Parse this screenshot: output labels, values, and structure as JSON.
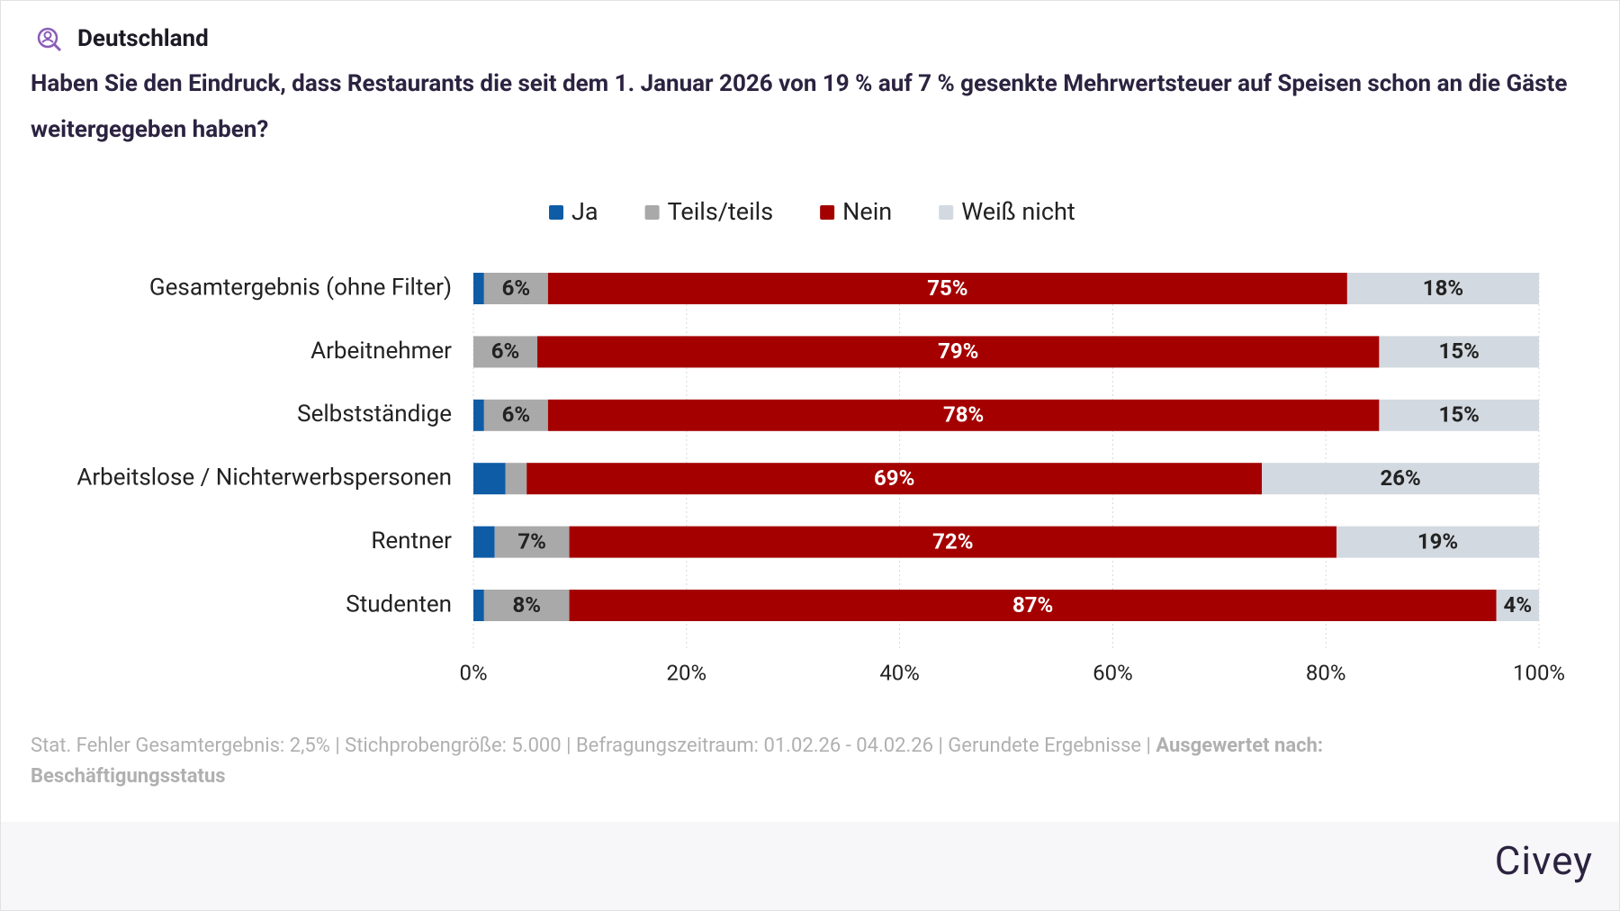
{
  "region": "Deutschland",
  "brand": "Civey",
  "chart_data": {
    "type": "stacked-barh",
    "title": "Haben Sie den Eindruck, dass Restaurants die seit dem 1. Januar 2026 von 19 % auf 7 % gesenkte Mehrwertsteuer auf Speisen schon an die Gäste weitergegeben haben?",
    "categories": [
      "Gesamtergebnis (ohne Filter)",
      "Arbeitnehmer",
      "Selbstständige",
      "Arbeitslose / Nichterwerbspersonen",
      "Rentner",
      "Studenten"
    ],
    "series": [
      {
        "name": "Ja",
        "color": "#0f5ca6",
        "values": [
          1,
          0,
          1,
          3,
          2,
          1
        ],
        "value_labels": [
          null,
          null,
          null,
          null,
          null,
          null
        ]
      },
      {
        "name": "Teils/teils",
        "color": "#a9a9a9",
        "values": [
          6,
          6,
          6,
          2,
          7,
          8
        ],
        "value_labels": [
          "6%",
          "6%",
          "6%",
          null,
          "7%",
          "8%"
        ]
      },
      {
        "name": "Nein",
        "color": "#a50000",
        "values": [
          75,
          79,
          78,
          69,
          72,
          87
        ],
        "value_labels": [
          "75%",
          "79%",
          "78%",
          "69%",
          "72%",
          "87%"
        ]
      },
      {
        "name": "Weiß nicht",
        "color": "#d3d9e0",
        "values": [
          18,
          15,
          15,
          26,
          19,
          4
        ],
        "value_labels": [
          "18%",
          "15%",
          "15%",
          "26%",
          "19%",
          "4%"
        ]
      }
    ],
    "xlim": [
      0,
      100
    ],
    "xticks": [
      {
        "value": 0,
        "label": "0%"
      },
      {
        "value": 20,
        "label": "20%"
      },
      {
        "value": 40,
        "label": "40%"
      },
      {
        "value": 60,
        "label": "60%"
      },
      {
        "value": 80,
        "label": "80%"
      },
      {
        "value": 100,
        "label": "100%"
      }
    ],
    "grid": true,
    "note": "Stat. Fehler Gesamtergebnis: 2,5% | Stichprobengröße: 5.000 | Befragungszeitraum: 01.02.26 - 04.02.26 | Gerundete Ergebnisse |",
    "note_bold": "Ausgewertet nach: Beschäftigungsstatus"
  }
}
